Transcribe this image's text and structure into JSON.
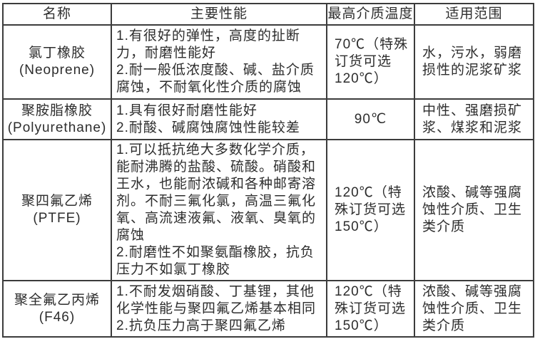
{
  "colors": {
    "background": "#ffffff",
    "border": "#3c3c3c",
    "text": "#2d2d2d"
  },
  "table": {
    "headers": [
      "名称",
      "主要性能",
      "最高介质温度",
      "适用范围"
    ],
    "rows": [
      {
        "name_cn": "氯丁橡胶",
        "name_en": "(Neoprene)",
        "performance": [
          "1.有很好的弹性，高度的扯断力，耐磨性能好",
          "2.耐一般低浓度酸、碱、盐介质腐蚀，不耐氧化性介质的腐蚀"
        ],
        "max_temp": "70℃（特殊订货可选120℃）",
        "application": "水，污水，弱磨损性的泥浆矿浆"
      },
      {
        "name_cn": "聚胺脂橡胶",
        "name_en": "(Polyurethane)",
        "performance": [
          "1.具有很好耐磨性能好",
          "2.耐酸、碱腐蚀腐蚀性能较差"
        ],
        "max_temp": "90℃",
        "application": "中性、强磨损矿浆、煤浆和泥浆"
      },
      {
        "name_cn": "聚四氟乙烯",
        "name_en": "(PTFE)",
        "performance": [
          "1.可以抵抗绝大多数化学介质，能耐沸腾的盐酸、硫酸。硝酸和王水，也能耐浓碱和各种邮寄溶剂。不耐三氟化氯，高温三氟化氧、高流速液氟、液氧、臭氧的腐蚀",
          "2.耐磨性不如聚氨酯橡胶，抗负压力不如氯丁橡胶"
        ],
        "max_temp": "120℃（特殊订货可选150℃）",
        "application": "浓酸、碱等强腐蚀性介质、卫生类介质"
      },
      {
        "name_cn": "聚全氟乙丙烯",
        "name_en": "(F46)",
        "performance": [
          "1.不耐发烟硝酸、丁基锂，其他化学性能与聚四氟乙烯基本相同",
          "2.抗负压力高于聚四氟乙烯"
        ],
        "max_temp": "120℃（特殊订货可选150℃）",
        "application": "浓酸、碱等强腐蚀性介质、卫生类介质"
      }
    ]
  }
}
